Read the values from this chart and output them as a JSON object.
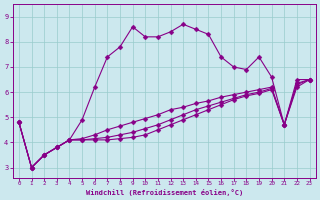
{
  "xlabel": "Windchill (Refroidissement éolien,°C)",
  "background_color": "#cce8ee",
  "line_color": "#880088",
  "grid_color": "#99cccc",
  "xlim": [
    -0.5,
    23.5
  ],
  "ylim": [
    2.6,
    9.5
  ],
  "xticks": [
    0,
    1,
    2,
    3,
    4,
    5,
    6,
    7,
    8,
    9,
    10,
    11,
    12,
    13,
    14,
    15,
    16,
    17,
    18,
    19,
    20,
    21,
    22,
    23
  ],
  "yticks": [
    3,
    4,
    5,
    6,
    7,
    8,
    9
  ],
  "series": [
    {
      "y": [
        4.8,
        3.0,
        3.5,
        3.8,
        4.1,
        4.9,
        6.2,
        7.4,
        7.8,
        8.6,
        8.2,
        8.2,
        8.4,
        8.7,
        8.5,
        8.3,
        7.4,
        7.0,
        6.9,
        7.4,
        6.6,
        4.7,
        6.5,
        6.5
      ],
      "marker": true
    },
    {
      "y": [
        4.8,
        3.0,
        3.5,
        3.8,
        4.1,
        4.1,
        4.1,
        4.1,
        4.15,
        4.2,
        4.3,
        4.5,
        4.7,
        4.9,
        5.1,
        5.3,
        5.5,
        5.7,
        5.85,
        5.95,
        6.1,
        4.7,
        6.2,
        6.5
      ],
      "marker": true
    },
    {
      "y": [
        4.8,
        3.0,
        3.5,
        3.8,
        4.1,
        4.1,
        4.15,
        4.2,
        4.3,
        4.4,
        4.55,
        4.7,
        4.9,
        5.1,
        5.3,
        5.45,
        5.6,
        5.75,
        5.9,
        6.0,
        6.15,
        4.7,
        6.3,
        6.5
      ],
      "marker": true
    },
    {
      "y": [
        4.8,
        3.0,
        3.5,
        3.8,
        4.1,
        4.15,
        4.3,
        4.5,
        4.65,
        4.8,
        4.95,
        5.1,
        5.3,
        5.4,
        5.55,
        5.65,
        5.8,
        5.9,
        6.0,
        6.1,
        6.2,
        4.7,
        6.35,
        6.5
      ],
      "marker": true
    }
  ],
  "marker": "D",
  "markersize": 2.5,
  "linewidth": 0.8
}
